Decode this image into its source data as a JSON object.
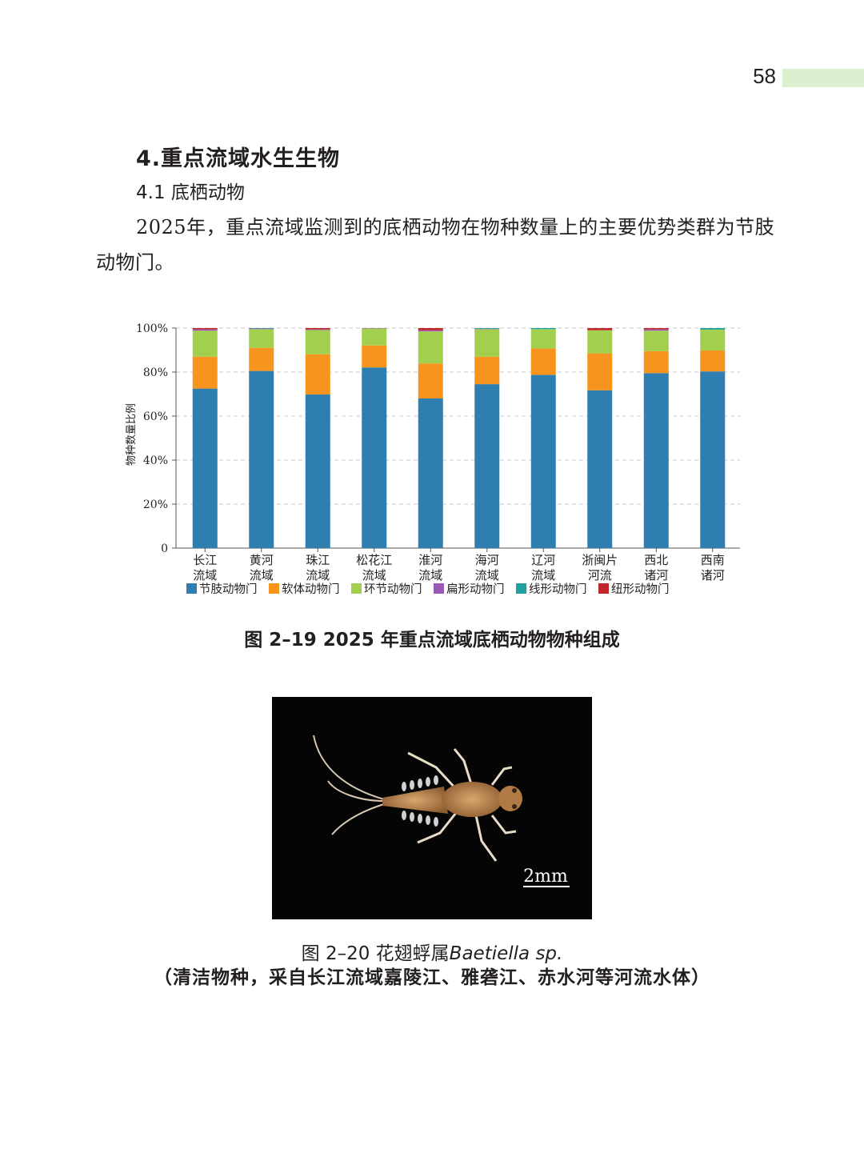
{
  "page": {
    "number": "58"
  },
  "heading": {
    "section": "4.重点流域水生生物",
    "subsection": "4.1 底栖动物"
  },
  "paragraph": "2025年，重点流域监测到的底栖动物在物种数量上的主要优势类群为节肢动物门。",
  "figure1": {
    "caption": "图 2–19  2025 年重点流域底栖动物物种组成"
  },
  "chart_data": {
    "type": "bar",
    "stacked": true,
    "ylabel": "物种数量比例",
    "ylim": [
      0,
      100
    ],
    "ytick_labels": [
      "0",
      "20%",
      "40%",
      "60%",
      "80%",
      "100%"
    ],
    "grid": true,
    "legend_position": "bottom",
    "categories": [
      [
        "长江",
        "流域"
      ],
      [
        "黄河",
        "流域"
      ],
      [
        "珠江",
        "流域"
      ],
      [
        "松花江",
        "流域"
      ],
      [
        "淮河",
        "流域"
      ],
      [
        "海河",
        "流域"
      ],
      [
        "辽河",
        "流域"
      ],
      [
        "浙闽片",
        "河流"
      ],
      [
        "西北",
        "诸河"
      ],
      [
        "西南",
        "诸河"
      ]
    ],
    "series": [
      {
        "name": "节肢动物门",
        "color": "#2e7fb0",
        "values": [
          72.5,
          80.5,
          69.8,
          82.1,
          68.0,
          74.5,
          78.7,
          71.7,
          79.5,
          80.3
        ]
      },
      {
        "name": "软体动物门",
        "color": "#f7941d",
        "values": [
          14.5,
          10.5,
          18.3,
          10.0,
          15.9,
          12.5,
          12.0,
          16.8,
          10.0,
          9.5
        ]
      },
      {
        "name": "环节动物门",
        "color": "#a3cf4f",
        "values": [
          11.8,
          8.5,
          11.0,
          7.7,
          14.6,
          12.5,
          8.8,
          10.5,
          9.3,
          9.5
        ]
      },
      {
        "name": "扁形动物门",
        "color": "#9b59b6",
        "values": [
          0.6,
          0.3,
          0.3,
          0.2,
          0.5,
          0.2,
          0.0,
          0.0,
          0.6,
          0.0
        ]
      },
      {
        "name": "线形动物门",
        "color": "#20a39e",
        "values": [
          0.0,
          0.2,
          0.0,
          0.0,
          0.0,
          0.3,
          0.5,
          0.0,
          0.0,
          0.7
        ]
      },
      {
        "name": "纽形动物门",
        "color": "#c0272d",
        "values": [
          0.6,
          0.0,
          0.6,
          0.0,
          1.0,
          0.0,
          0.0,
          1.0,
          0.6,
          0.0
        ]
      }
    ]
  },
  "figure2": {
    "scale_bar": "2mm",
    "caption_prefix": "图 2–20  花翅蜉属",
    "caption_species": "Baetiella sp.",
    "caption_note": "（清洁物种，采自长江流域嘉陵江、雅砻江、赤水河等河流水体）"
  }
}
